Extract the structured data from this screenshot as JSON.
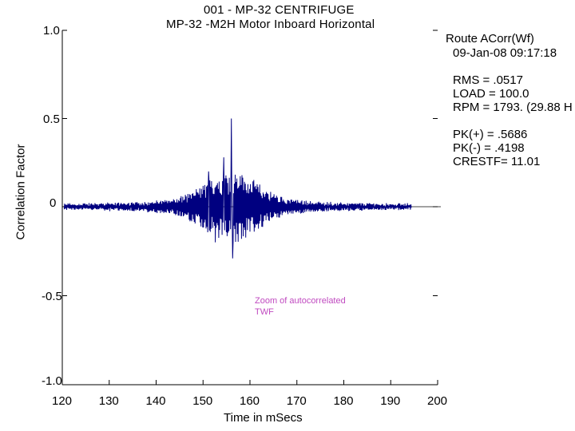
{
  "chart_data": {
    "type": "line",
    "title": "001  - MP-32 CENTRIFUGE",
    "subtitle": "MP-32     -M2H   Motor Inboard Horizontal",
    "xlabel": "Time in mSecs",
    "ylabel": "Correlation Factor",
    "xlim": [
      120,
      200
    ],
    "ylim": [
      -1.0,
      1.0
    ],
    "x_ticks": [
      "120",
      "130",
      "140",
      "150",
      "160",
      "170",
      "180",
      "190",
      "200"
    ],
    "y_ticks": [
      "1.0",
      "0.5",
      "0",
      "-0.5",
      "-1.0"
    ],
    "grid": false,
    "series": [
      {
        "x_start": 120.4,
        "x_end": 194.4,
        "color": "#000080",
        "peaks": [
          {
            "x": 156.0,
            "y": 0.5
          },
          {
            "x": 156.3,
            "y": -0.29
          },
          {
            "x": 154.4,
            "y": 0.28
          },
          {
            "x": 157.2,
            "y": 0.16
          },
          {
            "x": 152.6,
            "y": -0.2
          },
          {
            "x": 151.2,
            "y": 0.2
          }
        ]
      }
    ],
    "annotation": [
      "Zoom of autocorrelated",
      "TWF"
    ]
  },
  "info": {
    "route": "Route ACorr(Wf)",
    "datetime": "09-Jan-08  09:17:18",
    "rms": "RMS = .0517",
    "load": "LOAD = 100.0",
    "rpm": "RPM = 1793. (29.88 H",
    "pk_pos": "PK(+) = .5686",
    "pk_neg": "PK(-) = .4198",
    "crestf": "CRESTF= 11.01"
  }
}
